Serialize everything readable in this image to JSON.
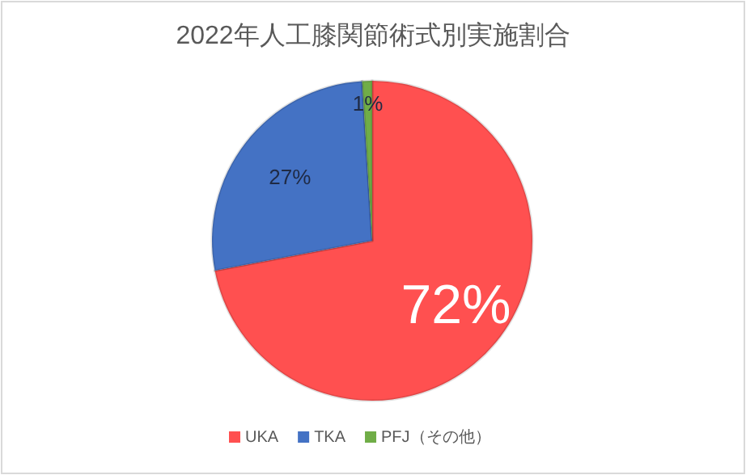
{
  "chart_data": {
    "type": "pie",
    "title": "2022年人工膝関節術式別実施割合",
    "categories": [
      "UKA",
      "TKA",
      "PFJ（その他）"
    ],
    "values": [
      72,
      27,
      1
    ],
    "colors": [
      "#ff5050",
      "#4472c4",
      "#70ad47"
    ],
    "value_labels": [
      "72%",
      "27%",
      "1%"
    ],
    "legend": "bottom"
  }
}
